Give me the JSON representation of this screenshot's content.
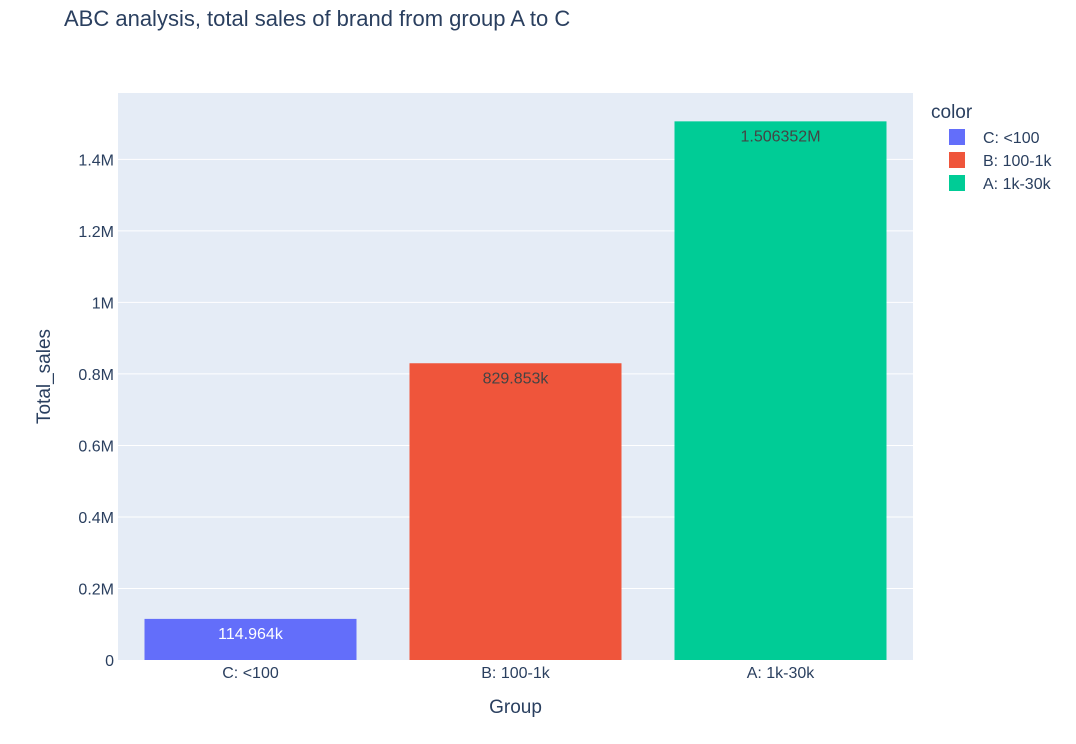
{
  "chart_data": {
    "type": "bar",
    "title": "ABC analysis, total sales of brand from group A to C",
    "xlabel": "Group",
    "ylabel": "Total_sales",
    "categories": [
      "C: <100",
      "B: 100-1k",
      "A: 1k-30k"
    ],
    "values": [
      114964,
      829853,
      1506352
    ],
    "value_labels": [
      "114.964k",
      "829.853k",
      "1.506352M"
    ],
    "colors": [
      "#636efa",
      "#ef553b",
      "#00cc96"
    ],
    "ylim": [
      0,
      1585634
    ],
    "yticks": [
      0,
      200000,
      400000,
      600000,
      800000,
      1000000,
      1200000,
      1400000
    ],
    "ytick_labels": [
      "0",
      "0.2M",
      "0.4M",
      "0.6M",
      "0.8M",
      "1M",
      "1.2M",
      "1.4M"
    ],
    "grid": true,
    "legend": {
      "title": "color",
      "placement": "top-right",
      "entries": [
        "C: <100",
        "B: 100-1k",
        "A: 1k-30k"
      ]
    },
    "plot_background": "#e5ecf6"
  }
}
